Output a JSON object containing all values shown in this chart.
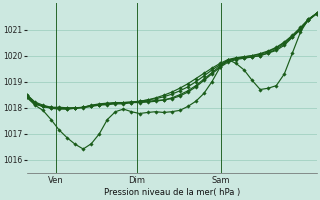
{
  "xlabel": "Pression niveau de la mer( hPa )",
  "bg_color": "#cce8e0",
  "grid_color": "#99ccbb",
  "line_color": "#1a5c1a",
  "ylim": [
    1015.5,
    1022.0
  ],
  "xtick_labels": [
    "Ven",
    "Dim",
    "Sam"
  ],
  "xtick_pos": [
    0.1,
    0.38,
    0.67
  ],
  "ytick_vals": [
    1016,
    1017,
    1018,
    1019,
    1020,
    1021
  ],
  "vlines_x": [
    0.1,
    0.38,
    0.67
  ],
  "n_points": 37,
  "marker": "D",
  "markersize": 1.8,
  "linewidth": 0.85,
  "lines": [
    [
      1018.4,
      1018.1,
      1017.9,
      1017.55,
      1017.15,
      1016.85,
      1016.6,
      1016.42,
      1016.62,
      1017.0,
      1017.55,
      1017.85,
      1017.95,
      1017.85,
      1017.78,
      1017.82,
      1017.85,
      1017.82,
      1017.85,
      1017.9,
      1018.05,
      1018.25,
      1018.55,
      1019.0,
      1019.55,
      1019.85,
      1019.7,
      1019.45,
      1019.05,
      1018.7,
      1018.75,
      1018.85,
      1019.3,
      1020.1,
      1020.9,
      1021.4,
      1021.6
    ],
    [
      1018.4,
      1018.15,
      1018.05,
      1018.02,
      1018.02,
      1018.0,
      1018.0,
      1018.0,
      1018.05,
      1018.1,
      1018.12,
      1018.15,
      1018.15,
      1018.2,
      1018.22,
      1018.25,
      1018.28,
      1018.3,
      1018.35,
      1018.45,
      1018.6,
      1018.8,
      1019.05,
      1019.3,
      1019.55,
      1019.75,
      1019.85,
      1019.9,
      1019.95,
      1020.0,
      1020.1,
      1020.2,
      1020.4,
      1020.7,
      1021.0,
      1021.35,
      1021.6
    ],
    [
      1018.45,
      1018.15,
      1018.05,
      1018.0,
      1017.98,
      1017.98,
      1018.0,
      1018.02,
      1018.08,
      1018.12,
      1018.15,
      1018.18,
      1018.18,
      1018.2,
      1018.2,
      1018.22,
      1018.25,
      1018.3,
      1018.38,
      1018.5,
      1018.65,
      1018.85,
      1019.1,
      1019.35,
      1019.6,
      1019.8,
      1019.88,
      1019.92,
      1019.95,
      1020.0,
      1020.1,
      1020.25,
      1020.45,
      1020.72,
      1021.02,
      1021.38,
      1021.62
    ],
    [
      1018.5,
      1018.2,
      1018.05,
      1017.98,
      1017.95,
      1017.95,
      1017.98,
      1018.02,
      1018.08,
      1018.12,
      1018.15,
      1018.18,
      1018.2,
      1018.22,
      1018.25,
      1018.3,
      1018.35,
      1018.42,
      1018.52,
      1018.65,
      1018.8,
      1019.0,
      1019.22,
      1019.45,
      1019.65,
      1019.82,
      1019.9,
      1019.95,
      1020.0,
      1020.05,
      1020.15,
      1020.3,
      1020.5,
      1020.75,
      1021.05,
      1021.38,
      1021.62
    ],
    [
      1018.5,
      1018.22,
      1018.1,
      1018.02,
      1017.98,
      1017.96,
      1017.98,
      1018.02,
      1018.1,
      1018.15,
      1018.18,
      1018.2,
      1018.2,
      1018.22,
      1018.25,
      1018.3,
      1018.38,
      1018.48,
      1018.6,
      1018.75,
      1018.92,
      1019.12,
      1019.32,
      1019.52,
      1019.7,
      1019.85,
      1019.92,
      1019.96,
      1020.0,
      1020.08,
      1020.18,
      1020.32,
      1020.52,
      1020.78,
      1021.08,
      1021.4,
      1021.62
    ]
  ]
}
